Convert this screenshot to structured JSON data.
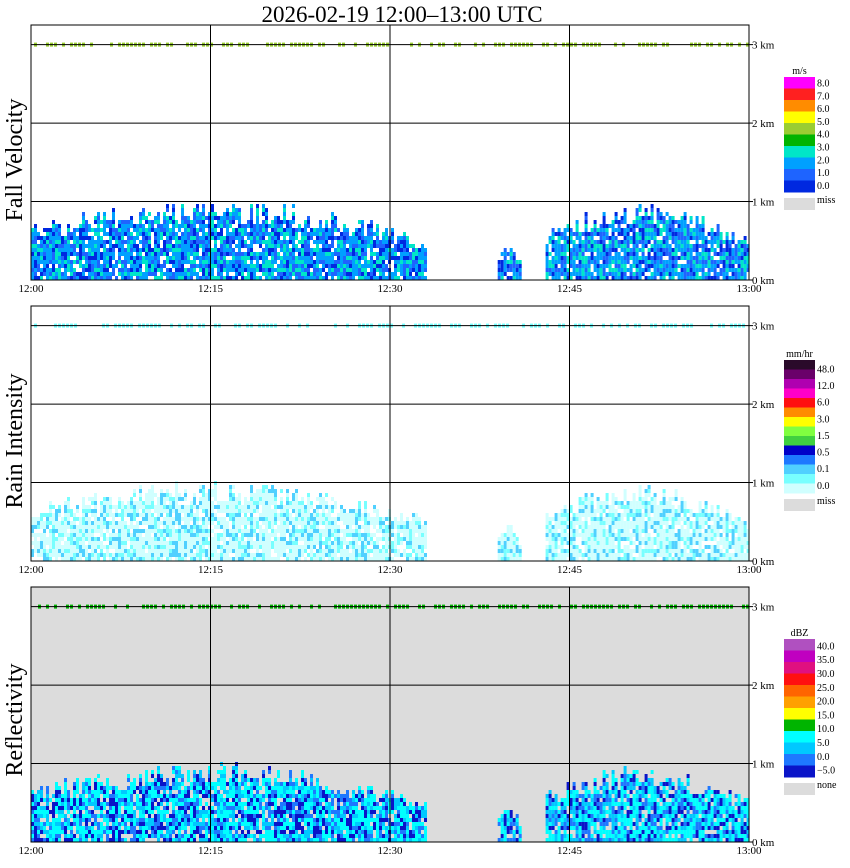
{
  "title": "2026-02-19   12:00–13:00 UTC",
  "colors": {
    "missing": "#dcdcdc",
    "frame": "#000000",
    "background": "#ffffff"
  },
  "chart_data": [
    {
      "type": "heatmap",
      "ylabel": "Fall Velocity",
      "x_ticks": [
        "12:00",
        "12:15",
        "12:30",
        "12:45",
        "13:00"
      ],
      "y_ticks": [
        "0 km",
        "1 km",
        "2 km",
        "3 km"
      ],
      "xlim": [
        "12:00",
        "13:00"
      ],
      "ylim_km": [
        0,
        3.25
      ],
      "grid": true,
      "background": "none",
      "units": "m/s",
      "colorbar": {
        "labels": [
          "8.0",
          "7.0",
          "6.0",
          "5.0",
          "4.0",
          "3.0",
          "2.0",
          "1.0",
          "0.0"
        ],
        "colors": [
          "#ff00ff",
          "#ff2020",
          "#ff8c00",
          "#ffff00",
          "#9acd32",
          "#00b400",
          "#00e6c8",
          "#00a0ff",
          "#1e64ff",
          "#0028e0"
        ],
        "missing_label": "miss",
        "missing_color": "#dcdcdc"
      },
      "features": {
        "precip_blocks": [
          {
            "start": "12:00",
            "end": "12:33",
            "max_height_km": 1.0
          },
          {
            "start": "12:39",
            "end": "12:41",
            "max_height_km": 0.45
          },
          {
            "start": "12:43",
            "end": "13:00",
            "max_height_km": 0.95
          }
        ],
        "upper_band_km": 3.0
      }
    },
    {
      "type": "heatmap",
      "ylabel": "Rain Intensity",
      "x_ticks": [
        "12:00",
        "12:15",
        "12:30",
        "12:45",
        "13:00"
      ],
      "y_ticks": [
        "0 km",
        "1 km",
        "2 km",
        "3 km"
      ],
      "xlim": [
        "12:00",
        "13:00"
      ],
      "ylim_km": [
        0,
        3.25
      ],
      "grid": true,
      "background": "none",
      "units": "mm/hr",
      "colorbar": {
        "labels": [
          "48.0",
          "12.0",
          "6.0",
          "3.0",
          "1.5",
          "0.5",
          "0.1",
          "0.0"
        ],
        "colors": [
          "#2a0a2a",
          "#6a006a",
          "#b000b0",
          "#ff00c8",
          "#ff1010",
          "#ff8c00",
          "#ffff00",
          "#80ff40",
          "#40d040",
          "#0000c8",
          "#1e78ff",
          "#50d0ff",
          "#78ffff",
          "#d0ffff"
        ],
        "missing_label": "miss",
        "missing_color": "#dcdcdc"
      },
      "features": {
        "precip_blocks": [
          {
            "start": "12:00",
            "end": "12:33",
            "max_height_km": 1.0
          },
          {
            "start": "12:39",
            "end": "12:41",
            "max_height_km": 0.45
          },
          {
            "start": "12:43",
            "end": "13:00",
            "max_height_km": 0.95
          }
        ],
        "upper_band_km": 3.0
      }
    },
    {
      "type": "heatmap",
      "ylabel": "Reflectivity",
      "x_ticks": [
        "12:00",
        "12:15",
        "12:30",
        "12:45",
        "13:00"
      ],
      "y_ticks": [
        "0 km",
        "1 km",
        "2 km",
        "3 km"
      ],
      "xlim": [
        "12:00",
        "13:00"
      ],
      "ylim_km": [
        0,
        3.25
      ],
      "grid": true,
      "background": "missing",
      "units": "dBZ",
      "colorbar": {
        "labels": [
          "40.0",
          "35.0",
          "30.0",
          "25.0",
          "20.0",
          "15.0",
          "10.0",
          "5.0",
          "0.0",
          "−5.0"
        ],
        "colors": [
          "#b050c0",
          "#c000c0",
          "#e01080",
          "#ff1010",
          "#ff6400",
          "#ffa000",
          "#ffff00",
          "#00b400",
          "#00ffff",
          "#00c8ff",
          "#1e78ff",
          "#0a14c8"
        ],
        "missing_label": "none",
        "missing_color": "#dcdcdc"
      },
      "features": {
        "precip_blocks": [
          {
            "start": "12:00",
            "end": "12:33",
            "max_height_km": 1.0
          },
          {
            "start": "12:39",
            "end": "12:41",
            "max_height_km": 0.45
          },
          {
            "start": "12:43",
            "end": "13:00",
            "max_height_km": 0.95
          }
        ],
        "upper_band_km": 3.0
      }
    }
  ]
}
